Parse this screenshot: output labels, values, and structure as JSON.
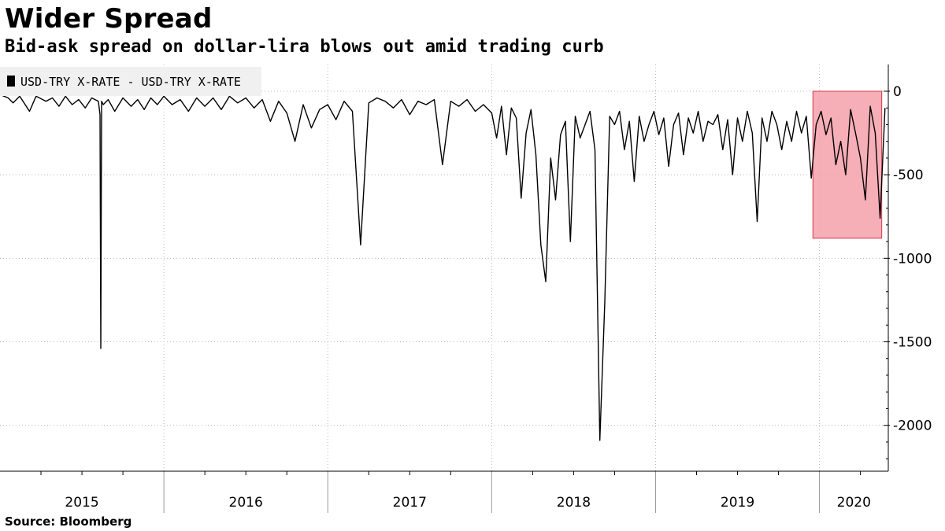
{
  "title": "Wider Spread",
  "subtitle": "Bid-ask spread on dollar-lira blows out amid trading curb",
  "source": "Source: Bloomberg",
  "colors": {
    "line": "#000000",
    "highlight_fill": "#f5a0aa",
    "highlight_stroke": "#d9364e",
    "grid": "#b8b8b8",
    "legend_bg": "#f0f0f0"
  },
  "chart_data": {
    "type": "line",
    "legend": [
      "USD-TRY X-RATE - USD-TRY X-RATE"
    ],
    "legend_position": "top-left",
    "grid": true,
    "x_range": [
      2015.0,
      2020.42
    ],
    "ylim": [
      -2270,
      160
    ],
    "y_ticks": [
      0,
      -500,
      -1000,
      -1500,
      -2000
    ],
    "y_tick_labels": [
      "0",
      "-500",
      "-1000",
      "-1500",
      "-2000"
    ],
    "x_tick_labels": [
      "2015",
      "2016",
      "2017",
      "2018",
      "2019",
      "2020"
    ],
    "y_axis_side": "right",
    "highlight_region": {
      "x": [
        2019.96,
        2020.38
      ],
      "y": [
        -880,
        0
      ]
    },
    "series": [
      {
        "name": "USD-TRY X-RATE - USD-TRY X-RATE",
        "x": [
          2015.0,
          2015.05,
          2015.08,
          2015.12,
          2015.18,
          2015.22,
          2015.28,
          2015.32,
          2015.36,
          2015.4,
          2015.44,
          2015.48,
          2015.52,
          2015.56,
          2015.6,
          2015.61,
          2015.615,
          2015.62,
          2015.63,
          2015.66,
          2015.7,
          2015.75,
          2015.8,
          2015.84,
          2015.88,
          2015.92,
          2015.96,
          2016.0,
          2016.05,
          2016.1,
          2016.15,
          2016.2,
          2016.25,
          2016.3,
          2016.35,
          2016.4,
          2016.45,
          2016.5,
          2016.55,
          2016.6,
          2016.65,
          2016.7,
          2016.75,
          2016.8,
          2016.85,
          2016.9,
          2016.95,
          2017.0,
          2017.05,
          2017.1,
          2017.15,
          2017.2,
          2017.25,
          2017.3,
          2017.35,
          2017.4,
          2017.45,
          2017.5,
          2017.55,
          2017.6,
          2017.65,
          2017.7,
          2017.75,
          2017.8,
          2017.85,
          2017.9,
          2017.95,
          2018.0,
          2018.03,
          2018.06,
          2018.09,
          2018.12,
          2018.15,
          2018.18,
          2018.21,
          2018.24,
          2018.27,
          2018.3,
          2018.33,
          2018.36,
          2018.39,
          2018.42,
          2018.45,
          2018.48,
          2018.51,
          2018.54,
          2018.57,
          2018.6,
          2018.63,
          2018.66,
          2018.69,
          2018.72,
          2018.75,
          2018.78,
          2018.81,
          2018.84,
          2018.87,
          2018.9,
          2018.93,
          2018.96,
          2018.99,
          2019.02,
          2019.05,
          2019.08,
          2019.11,
          2019.14,
          2019.17,
          2019.2,
          2019.23,
          2019.26,
          2019.29,
          2019.32,
          2019.35,
          2019.38,
          2019.41,
          2019.44,
          2019.47,
          2019.5,
          2019.53,
          2019.56,
          2019.59,
          2019.62,
          2019.65,
          2019.68,
          2019.71,
          2019.74,
          2019.77,
          2019.8,
          2019.83,
          2019.86,
          2019.89,
          2019.92,
          2019.95,
          2019.98,
          2020.01,
          2020.04,
          2020.07,
          2020.1,
          2020.13,
          2020.16,
          2020.19,
          2020.22,
          2020.25,
          2020.28,
          2020.31,
          2020.34,
          2020.37,
          2020.4
        ],
        "values": [
          -20,
          -40,
          -70,
          -30,
          -120,
          -30,
          -60,
          -40,
          -90,
          -30,
          -80,
          -50,
          -100,
          -40,
          -60,
          -140,
          -1540,
          -60,
          -80,
          -50,
          -120,
          -40,
          -90,
          -50,
          -110,
          -40,
          -80,
          -30,
          -80,
          -50,
          -120,
          -40,
          -90,
          -40,
          -110,
          -30,
          -70,
          -40,
          -100,
          -50,
          -180,
          -60,
          -130,
          -300,
          -80,
          -220,
          -110,
          -80,
          -170,
          -60,
          -120,
          -920,
          -70,
          -40,
          -60,
          -100,
          -50,
          -140,
          -60,
          -80,
          -50,
          -440,
          -60,
          -90,
          -50,
          -120,
          -80,
          -130,
          -280,
          -90,
          -380,
          -100,
          -160,
          -640,
          -250,
          -110,
          -380,
          -920,
          -1140,
          -400,
          -650,
          -260,
          -180,
          -900,
          -150,
          -280,
          -200,
          -120,
          -350,
          -2090,
          -1260,
          -150,
          -200,
          -120,
          -350,
          -180,
          -540,
          -150,
          -300,
          -200,
          -120,
          -260,
          -160,
          -450,
          -200,
          -130,
          -380,
          -160,
          -250,
          -120,
          -300,
          -180,
          -200,
          -140,
          -350,
          -170,
          -500,
          -160,
          -300,
          -120,
          -250,
          -780,
          -160,
          -300,
          -120,
          -200,
          -350,
          -180,
          -300,
          -120,
          -250,
          -150,
          -520,
          -200,
          -120,
          -260,
          -160,
          -440,
          -300,
          -500,
          -110,
          -250,
          -400,
          -650,
          -90,
          -250,
          -760,
          -100
        ]
      }
    ]
  }
}
